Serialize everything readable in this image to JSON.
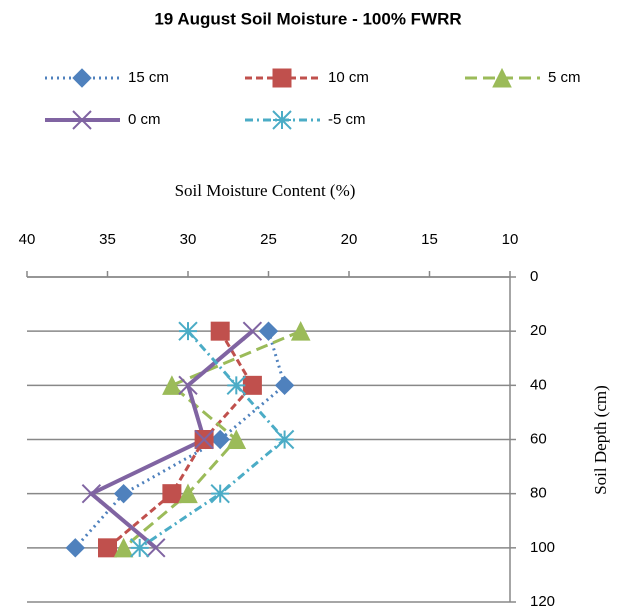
{
  "chart_data": {
    "type": "line",
    "title": "19 August Soil Moisture - 100% FWRR",
    "x_label": "Soil Moisture Content (%)",
    "y_label": "Soil Depth (cm)",
    "y": [
      20,
      40,
      60,
      80,
      100
    ],
    "series": [
      {
        "name": "15 cm",
        "color": "#4f81bd",
        "marker": "diamond",
        "dash": "dot",
        "x": [
          25,
          24,
          28,
          34,
          37
        ]
      },
      {
        "name": "10 cm",
        "color": "#c0504d",
        "marker": "square",
        "dash": "dash",
        "x": [
          28,
          26,
          29,
          31,
          35
        ]
      },
      {
        "name": "5 cm",
        "color": "#9bbb59",
        "marker": "triangle",
        "dash": "longdash",
        "x": [
          23,
          31,
          27,
          30,
          34
        ]
      },
      {
        "name": "0 cm",
        "color": "#8064a2",
        "marker": "x",
        "dash": "solid",
        "x": [
          26,
          30,
          29,
          36,
          32
        ]
      },
      {
        "name": "-5 cm",
        "color": "#4bacc6",
        "marker": "star",
        "dash": "dashdot",
        "x": [
          30,
          27,
          24,
          28,
          33
        ]
      }
    ],
    "xlim": [
      40,
      10
    ],
    "xticks": [
      40,
      35,
      30,
      25,
      20,
      15,
      10
    ],
    "ylim": [
      0,
      120
    ],
    "y_reversed": true,
    "yticks": [
      0,
      20,
      40,
      60,
      80,
      100,
      120
    ],
    "grid": true
  }
}
